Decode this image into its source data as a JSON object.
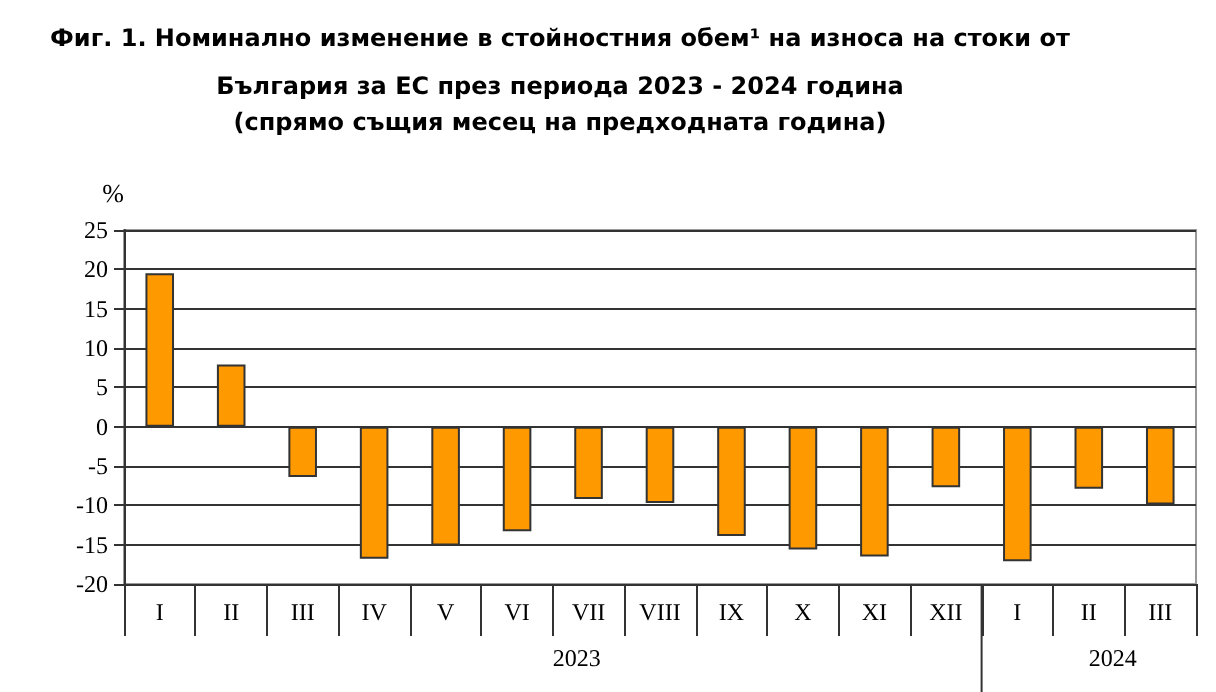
{
  "chart_data": {
    "type": "bar",
    "title": "Фиг. 1. Номинално изменение в стойностния обем¹ на износа на стоки от\nБългария за ЕС през периода 2023 - 2024 година",
    "subtitle": "(спрямо същия месец на предходната година)",
    "ylabel": "%",
    "categories": [
      "I",
      "II",
      "III",
      "IV",
      "V",
      "VI",
      "VII",
      "VIII",
      "IX",
      "X",
      "XI",
      "XII",
      "I",
      "II",
      "III"
    ],
    "series": [
      {
        "color": "#ff9900",
        "values": [
          19.5,
          7.9,
          -6.4,
          -16.8,
          -15.1,
          -13.3,
          -9.2,
          -9.7,
          -13.9,
          -15.6,
          -16.5,
          -7.7,
          -17.1,
          -7.9,
          -9.9
        ]
      }
    ],
    "annotations": [
      "2023",
      "2024"
    ],
    "ylim": [
      -20,
      25
    ],
    "yticks": [
      -20,
      -15,
      -10,
      -5,
      0,
      5,
      10,
      15,
      20,
      25
    ],
    "grid": "y"
  }
}
